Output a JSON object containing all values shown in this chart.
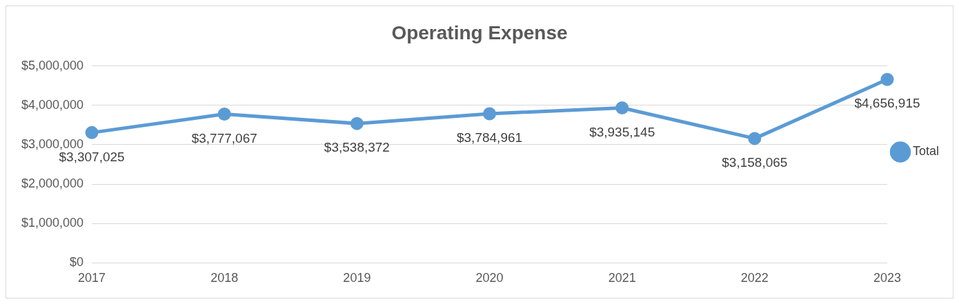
{
  "chart_data": {
    "type": "line",
    "title": "Operating Expense",
    "categories": [
      "2017",
      "2018",
      "2019",
      "2020",
      "2021",
      "2022",
      "2023"
    ],
    "series": [
      {
        "name": "Total",
        "color": "#5b9bd5",
        "values": [
          3307025,
          3777067,
          3538372,
          3784961,
          3935145,
          3158065,
          4656915
        ],
        "value_labels": [
          "$3,307,025",
          "$3,777,067",
          "$3,538,372",
          "$3,784,961",
          "$3,935,145",
          "$3,158,065",
          "$4,656,915"
        ]
      }
    ],
    "ylim": [
      0,
      5000000
    ],
    "yticks": [
      {
        "value": 0,
        "label": "$0"
      },
      {
        "value": 1000000,
        "label": "$1,000,000"
      },
      {
        "value": 2000000,
        "label": "$2,000,000"
      },
      {
        "value": 3000000,
        "label": "$3,000,000"
      },
      {
        "value": 4000000,
        "label": "$4,000,000"
      },
      {
        "value": 5000000,
        "label": "$5,000,000"
      }
    ],
    "grid": "y",
    "legend": "right",
    "marker": "circle",
    "line_style": "solid"
  }
}
